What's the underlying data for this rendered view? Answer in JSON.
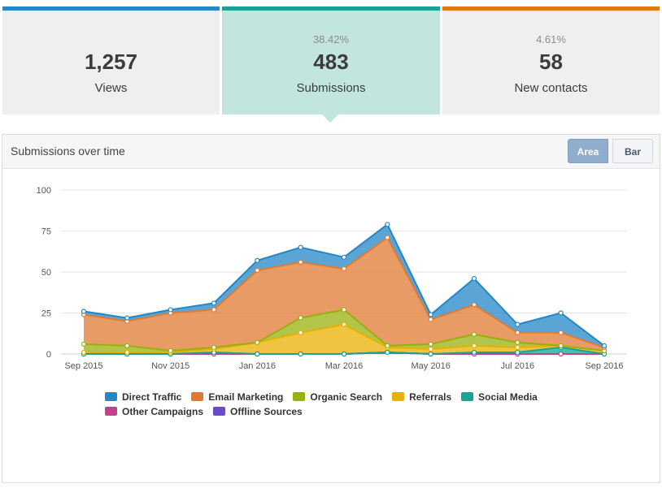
{
  "stats": [
    {
      "pct": "",
      "value": "1,257",
      "label": "Views",
      "accent": "#2387c8"
    },
    {
      "pct": "38.42%",
      "value": "483",
      "label": "Submissions",
      "accent": "#1aa393"
    },
    {
      "pct": "4.61%",
      "value": "58",
      "label": "New contacts",
      "accent": "#e07a10"
    }
  ],
  "panel": {
    "title": "Submissions over time",
    "toggle_area": "Area",
    "toggle_bar": "Bar"
  },
  "chart_data": {
    "type": "area",
    "stacked": true,
    "x_tick_labels": [
      "Sep 2015",
      "Nov 2015",
      "Jan 2016",
      "Mar 2016",
      "May 2016",
      "Jul 2016",
      "Sep 2016"
    ],
    "x_count": 13,
    "ylim": [
      0,
      100
    ],
    "y_ticks": [
      0,
      25,
      50,
      75,
      100
    ],
    "grid": true,
    "legend_position": "bottom",
    "series": [
      {
        "name": "Offline Sources",
        "color": "#6a4bc8",
        "values": [
          0,
          0,
          0,
          0,
          0,
          0,
          0,
          1,
          0,
          0,
          0,
          0,
          0
        ]
      },
      {
        "name": "Other Campaigns",
        "color": "#c2418b",
        "values": [
          0,
          0,
          0,
          0,
          0,
          0,
          0,
          0,
          0,
          0,
          0,
          0,
          0
        ]
      },
      {
        "name": "Social Media",
        "color": "#1aa393",
        "values": [
          0,
          0,
          0,
          1,
          0,
          0,
          0,
          0,
          0,
          1,
          1,
          4,
          0
        ]
      },
      {
        "name": "Referrals",
        "color": "#e8b000",
        "values": [
          1,
          1,
          1,
          2,
          7,
          13,
          18,
          3,
          3,
          4,
          3,
          1,
          2
        ]
      },
      {
        "name": "Organic Search",
        "color": "#98b00c",
        "values": [
          5,
          4,
          1,
          1,
          0,
          9,
          9,
          1,
          3,
          7,
          3,
          0,
          0
        ]
      },
      {
        "name": "Email Marketing",
        "color": "#e07a31",
        "values": [
          18,
          15,
          23,
          23,
          44,
          34,
          25,
          66,
          15,
          18,
          6,
          8,
          2
        ]
      },
      {
        "name": "Direct Traffic",
        "color": "#2387c8",
        "values": [
          2,
          2,
          2,
          4,
          6,
          9,
          7,
          8,
          3,
          16,
          5,
          12,
          1
        ]
      }
    ],
    "legend_order": [
      "Direct Traffic",
      "Email Marketing",
      "Organic Search",
      "Referrals",
      "Social Media",
      "Other Campaigns",
      "Offline Sources"
    ]
  }
}
